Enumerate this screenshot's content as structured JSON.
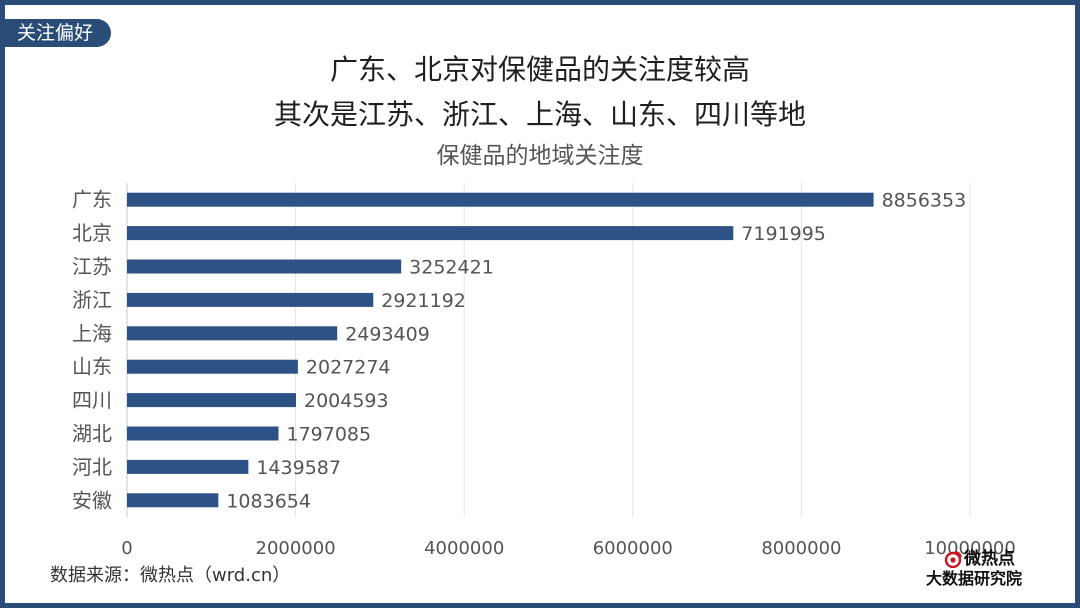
{
  "tag": "关注偏好",
  "headline": {
    "line1": "广东、北京对保健品的关注度较高",
    "line2": "其次是江苏、浙江、上海、山东、四川等地"
  },
  "source": "数据来源：微热点（wrd.cn）",
  "logo": {
    "name": "微热点",
    "org": "大数据研究院"
  },
  "colors": {
    "bar": "#2d5285",
    "frame": "#2a4d78",
    "grid": "#e3e3e3",
    "label": "#555555"
  },
  "chart_data": {
    "type": "bar",
    "orientation": "horizontal",
    "title": "保健品的地域关注度",
    "xlabel": "",
    "ylabel": "",
    "categories": [
      "广东",
      "北京",
      "江苏",
      "浙江",
      "上海",
      "山东",
      "四川",
      "湖北",
      "河北",
      "安徽"
    ],
    "values": [
      8856353,
      7191995,
      3252421,
      2921192,
      2493409,
      2027274,
      2004593,
      1797085,
      1439587,
      1083654
    ],
    "xlim": [
      0,
      10000000
    ],
    "xticks": [
      0,
      2000000,
      4000000,
      6000000,
      8000000,
      10000000
    ],
    "xtick_labels": [
      "0",
      "2000000",
      "4000000",
      "6000000",
      "8000000",
      "10000000"
    ],
    "grid": "vertical",
    "legend": "none",
    "data_labels": true
  }
}
